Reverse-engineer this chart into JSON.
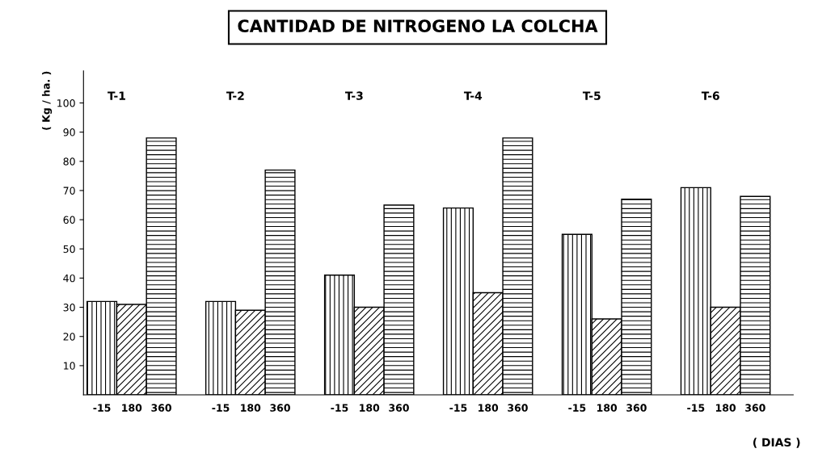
{
  "chart_data": {
    "type": "bar",
    "title": "CANTIDAD DE NITROGENO LA COLCHA",
    "xlabel": "( DIAS )",
    "ylabel": "( Kg / ha. )",
    "categories": [
      "T-1",
      "T-2",
      "T-3",
      "T-4",
      "T-5",
      "T-6"
    ],
    "series": [
      {
        "name": "-15",
        "color": "#000000",
        "values": [
          32,
          32,
          41,
          64,
          55,
          71
        ]
      },
      {
        "name": "180",
        "color": "#000000",
        "values": [
          31,
          29,
          30,
          35,
          26,
          30
        ]
      },
      {
        "name": "360",
        "color": "#000000",
        "values": [
          88,
          77,
          65,
          88,
          67,
          68
        ]
      }
    ],
    "ylim": [
      0,
      111
    ],
    "yticks": [
      10,
      20,
      30,
      40,
      50,
      60,
      70,
      80,
      90,
      100
    ],
    "grid": false,
    "legend": false
  }
}
